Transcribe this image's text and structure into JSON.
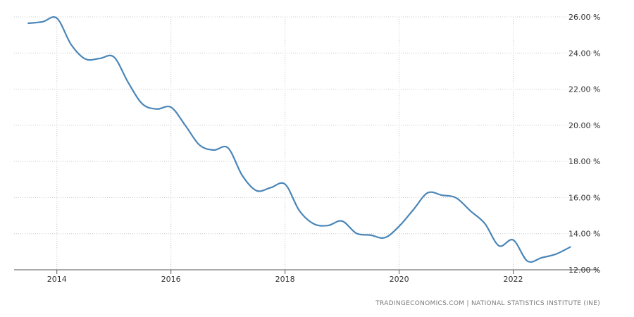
{
  "chart_data": {
    "type": "line",
    "title": "",
    "xlabel": "",
    "ylabel": "",
    "grid": true,
    "y_axis_position": "right",
    "ylim": [
      12,
      26
    ],
    "y_ticks": [
      12,
      14,
      16,
      18,
      20,
      22,
      24,
      26
    ],
    "y_tick_labels": [
      "12.00 %",
      "14.00 %",
      "16.00 %",
      "18.00 %",
      "20.00 %",
      "22.00 %",
      "24.00 %",
      "26.00 %"
    ],
    "xlim": [
      2013.25,
      2023.5
    ],
    "x_ticks": [
      2014,
      2016,
      2018,
      2020,
      2022
    ],
    "x_tick_labels": [
      "2014",
      "2016",
      "2018",
      "2020",
      "2022"
    ],
    "series": [
      {
        "color": "#4a86b8",
        "points": [
          [
            2013.5,
            25.65
          ],
          [
            2013.75,
            25.73
          ],
          [
            2014.0,
            25.93
          ],
          [
            2014.25,
            24.47
          ],
          [
            2014.5,
            23.67
          ],
          [
            2014.75,
            23.7
          ],
          [
            2015.0,
            23.78
          ],
          [
            2015.25,
            22.37
          ],
          [
            2015.5,
            21.18
          ],
          [
            2015.75,
            20.9
          ],
          [
            2016.0,
            21.0
          ],
          [
            2016.25,
            20.0
          ],
          [
            2016.5,
            18.91
          ],
          [
            2016.75,
            18.63
          ],
          [
            2017.0,
            18.75
          ],
          [
            2017.25,
            17.22
          ],
          [
            2017.5,
            16.38
          ],
          [
            2017.75,
            16.55
          ],
          [
            2018.0,
            16.74
          ],
          [
            2018.25,
            15.28
          ],
          [
            2018.5,
            14.55
          ],
          [
            2018.75,
            14.45
          ],
          [
            2019.0,
            14.7
          ],
          [
            2019.25,
            14.02
          ],
          [
            2019.5,
            13.92
          ],
          [
            2019.75,
            13.78
          ],
          [
            2020.0,
            14.41
          ],
          [
            2020.25,
            15.33
          ],
          [
            2020.5,
            16.26
          ],
          [
            2020.75,
            16.13
          ],
          [
            2021.0,
            15.98
          ],
          [
            2021.25,
            15.26
          ],
          [
            2021.5,
            14.57
          ],
          [
            2021.75,
            13.33
          ],
          [
            2022.0,
            13.65
          ],
          [
            2022.25,
            12.48
          ],
          [
            2022.5,
            12.67
          ],
          [
            2022.75,
            12.87
          ],
          [
            2023.0,
            13.26
          ]
        ]
      }
    ]
  },
  "source": "TRADINGECONOMICS.COM  |  NATIONAL STATISTICS INSTITUTE (INE)"
}
